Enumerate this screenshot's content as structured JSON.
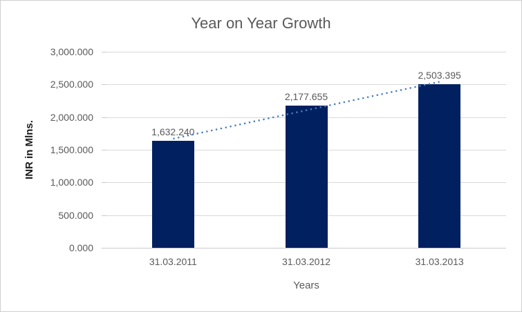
{
  "chart_data": {
    "type": "bar",
    "title": "Year on Year Growth",
    "categories": [
      "31.03.2011",
      "31.03.2012",
      "31.03.2013"
    ],
    "values": [
      1632.24,
      2177.655,
      2503.395
    ],
    "data_labels": [
      "1,632.240",
      "2,177.655",
      "2,503.395"
    ],
    "xlabel": "Years",
    "ylabel": "INR in Mlns.",
    "ylim": [
      0,
      3000
    ],
    "ytick_values": [
      0,
      500,
      1000,
      1500,
      2000,
      2500,
      3000
    ],
    "ytick_labels": [
      "0.000",
      "500.000",
      "1,000.000",
      "1,500.000",
      "2,000.000",
      "2,500.000",
      "3,000.000"
    ],
    "grid": true,
    "legend": "none",
    "trendline": {
      "type": "linear",
      "dash": "dotted"
    },
    "colors": {
      "bar": "#002060",
      "trendline": "#4a7ebb",
      "gridline": "#d9d9d9",
      "axis_line": "#c9c9c9",
      "title_text": "#595959",
      "label_text": "#595959"
    }
  }
}
